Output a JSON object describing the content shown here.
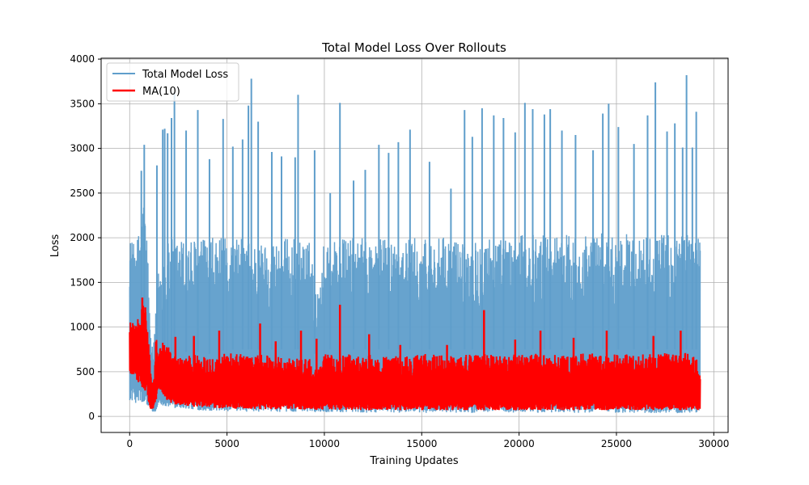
{
  "chart_data": {
    "type": "line",
    "title": "Total Model Loss Over Rollouts",
    "xlabel": "Training Updates",
    "ylabel": "Loss",
    "xlim": [
      -1465,
      30735
    ],
    "ylim": [
      -180,
      4010
    ],
    "xticks": [
      0,
      5000,
      10000,
      15000,
      20000,
      25000,
      30000
    ],
    "yticks": [
      0,
      500,
      1000,
      1500,
      2000,
      2500,
      3000,
      3500,
      4000
    ],
    "grid": true,
    "legend_position": "top-left",
    "series": [
      {
        "name": "Total Model Loss",
        "color": "#5f9ecb",
        "stroke_width": 1.5,
        "envelope": {
          "x": [
            0,
            150,
            300,
            500,
            700,
            900,
            1050,
            1200,
            1350,
            1500,
            1800,
            2200,
            2700,
            3200,
            3700,
            4300,
            5000,
            5500,
            6000,
            6300,
            6700,
            7500,
            8000,
            8700,
            9300,
            9600,
            10000,
            10900,
            11500,
            12300,
            13000,
            13800,
            14500,
            15200,
            16000,
            16700,
            17300,
            18200,
            19000,
            19800,
            20400,
            21000,
            21600,
            22200,
            23000,
            23800,
            24500,
            25200,
            26000,
            26700,
            27100,
            27700,
            28200,
            28700,
            29000,
            29300
          ],
          "low": [
            180,
            160,
            150,
            140,
            130,
            120,
            100,
            50,
            40,
            150,
            110,
            95,
            85,
            75,
            65,
            60,
            55,
            55,
            50,
            50,
            50,
            50,
            50,
            50,
            55,
            45,
            45,
            45,
            45,
            40,
            45,
            40,
            45,
            40,
            45,
            40,
            40,
            40,
            40,
            40,
            40,
            40,
            40,
            40,
            40,
            40,
            40,
            40,
            40,
            35,
            40,
            40,
            35,
            40,
            35,
            40
          ],
          "base_low": [
            1200,
            1300,
            1300,
            1200,
            1100,
            700,
            400,
            300,
            300,
            600,
            600,
            700,
            700,
            750,
            700,
            700,
            750,
            750,
            750,
            750,
            750,
            750,
            750,
            750,
            700,
            700,
            750,
            750,
            750,
            750,
            750,
            750,
            750,
            750,
            750,
            750,
            750,
            750,
            750,
            750,
            750,
            750,
            750,
            750,
            750,
            750,
            750,
            750,
            750,
            750,
            750,
            750,
            750,
            750,
            750,
            750
          ],
          "base_high": [
            2000,
            1950,
            1900,
            2100,
            2500,
            2100,
            1000,
            700,
            1200,
            1800,
            1900,
            2000,
            2000,
            2000,
            2000,
            2000,
            2000,
            2000,
            2000,
            1950,
            1950,
            2000,
            2000,
            2000,
            1950,
            1300,
            2000,
            2000,
            2000,
            2000,
            2000,
            2000,
            2000,
            2000,
            2000,
            2000,
            2000,
            2050,
            2000,
            2000,
            2050,
            2050,
            2050,
            2050,
            2050,
            2050,
            2050,
            2050,
            2050,
            2050,
            2050,
            2050,
            2050,
            2100,
            2100,
            2050
          ]
        },
        "spikes": [
          {
            "x": 600,
            "y": 2750
          },
          {
            "x": 750,
            "y": 3040
          },
          {
            "x": 1400,
            "y": 2810
          },
          {
            "x": 1700,
            "y": 3210
          },
          {
            "x": 1800,
            "y": 3220
          },
          {
            "x": 1950,
            "y": 3170
          },
          {
            "x": 2150,
            "y": 3340
          },
          {
            "x": 2300,
            "y": 3630
          },
          {
            "x": 2900,
            "y": 3200
          },
          {
            "x": 3500,
            "y": 3430
          },
          {
            "x": 4100,
            "y": 2880
          },
          {
            "x": 4800,
            "y": 3330
          },
          {
            "x": 5300,
            "y": 3020
          },
          {
            "x": 5800,
            "y": 3100
          },
          {
            "x": 6100,
            "y": 3480
          },
          {
            "x": 6250,
            "y": 3780
          },
          {
            "x": 6600,
            "y": 3300
          },
          {
            "x": 7300,
            "y": 2960
          },
          {
            "x": 7800,
            "y": 2910
          },
          {
            "x": 8500,
            "y": 2900
          },
          {
            "x": 8650,
            "y": 3600
          },
          {
            "x": 9500,
            "y": 2980
          },
          {
            "x": 10300,
            "y": 2500
          },
          {
            "x": 10800,
            "y": 3510
          },
          {
            "x": 11500,
            "y": 2640
          },
          {
            "x": 12100,
            "y": 2760
          },
          {
            "x": 12800,
            "y": 3040
          },
          {
            "x": 13300,
            "y": 2950
          },
          {
            "x": 13800,
            "y": 3070
          },
          {
            "x": 14400,
            "y": 3210
          },
          {
            "x": 15400,
            "y": 2850
          },
          {
            "x": 16500,
            "y": 2550
          },
          {
            "x": 17200,
            "y": 3430
          },
          {
            "x": 17600,
            "y": 3130
          },
          {
            "x": 18100,
            "y": 3450
          },
          {
            "x": 18700,
            "y": 3370
          },
          {
            "x": 19200,
            "y": 3340
          },
          {
            "x": 19800,
            "y": 3180
          },
          {
            "x": 20300,
            "y": 3510
          },
          {
            "x": 20700,
            "y": 3440
          },
          {
            "x": 21300,
            "y": 3380
          },
          {
            "x": 21600,
            "y": 3440
          },
          {
            "x": 22200,
            "y": 3200
          },
          {
            "x": 22900,
            "y": 3150
          },
          {
            "x": 23800,
            "y": 2980
          },
          {
            "x": 24300,
            "y": 3390
          },
          {
            "x": 24600,
            "y": 3500
          },
          {
            "x": 25100,
            "y": 3240
          },
          {
            "x": 25900,
            "y": 3050
          },
          {
            "x": 26600,
            "y": 3370
          },
          {
            "x": 27000,
            "y": 3740
          },
          {
            "x": 27600,
            "y": 3190
          },
          {
            "x": 28000,
            "y": 3280
          },
          {
            "x": 28400,
            "y": 3010
          },
          {
            "x": 28600,
            "y": 3820
          },
          {
            "x": 28900,
            "y": 3010
          },
          {
            "x": 29100,
            "y": 3410
          }
        ]
      },
      {
        "name": "MA(10)",
        "color": "#ff0000",
        "stroke_width": 2,
        "envelope": {
          "x": [
            0,
            150,
            300,
            500,
            700,
            900,
            1050,
            1200,
            1350,
            1500,
            1800,
            2200,
            2700,
            3200,
            3700,
            4300,
            5000,
            5500,
            6000,
            6300,
            6700,
            7500,
            8000,
            8700,
            9300,
            9600,
            10000,
            10900,
            11500,
            12300,
            13000,
            13800,
            14500,
            15200,
            16000,
            16700,
            17300,
            18200,
            19000,
            19800,
            20400,
            21000,
            21600,
            22200,
            23000,
            23800,
            24500,
            25200,
            26000,
            26700,
            27100,
            27700,
            28200,
            28700,
            29000,
            29300
          ],
          "low": [
            450,
            460,
            420,
            350,
            320,
            260,
            60,
            70,
            130,
            320,
            200,
            140,
            120,
            110,
            100,
            95,
            90,
            85,
            85,
            85,
            80,
            80,
            80,
            80,
            75,
            75,
            75,
            75,
            70,
            70,
            70,
            70,
            70,
            70,
            70,
            70,
            70,
            70,
            70,
            70,
            70,
            70,
            70,
            70,
            70,
            70,
            70,
            70,
            70,
            70,
            70,
            70,
            70,
            70,
            70,
            70
          ],
          "high": [
            1080,
            1050,
            1020,
            1150,
            1300,
            1100,
            600,
            300,
            880,
            820,
            850,
            700,
            650,
            700,
            680,
            640,
            720,
            700,
            700,
            660,
            700,
            680,
            650,
            660,
            650,
            500,
            700,
            720,
            680,
            690,
            670,
            690,
            680,
            700,
            690,
            680,
            690,
            720,
            700,
            690,
            720,
            700,
            700,
            700,
            700,
            720,
            710,
            700,
            710,
            700,
            700,
            720,
            700,
            720,
            720,
            600
          ]
        },
        "spikes": [
          {
            "x": 650,
            "y": 1330
          },
          {
            "x": 800,
            "y": 1220
          },
          {
            "x": 2350,
            "y": 890
          },
          {
            "x": 3300,
            "y": 900
          },
          {
            "x": 4600,
            "y": 960
          },
          {
            "x": 6700,
            "y": 1040
          },
          {
            "x": 7500,
            "y": 840
          },
          {
            "x": 8800,
            "y": 960
          },
          {
            "x": 9600,
            "y": 870
          },
          {
            "x": 10800,
            "y": 1250
          },
          {
            "x": 12300,
            "y": 920
          },
          {
            "x": 13900,
            "y": 800
          },
          {
            "x": 16300,
            "y": 800
          },
          {
            "x": 18200,
            "y": 1190
          },
          {
            "x": 19800,
            "y": 860
          },
          {
            "x": 21100,
            "y": 960
          },
          {
            "x": 22800,
            "y": 880
          },
          {
            "x": 24500,
            "y": 960
          },
          {
            "x": 26900,
            "y": 900
          },
          {
            "x": 28300,
            "y": 960
          }
        ]
      }
    ]
  }
}
